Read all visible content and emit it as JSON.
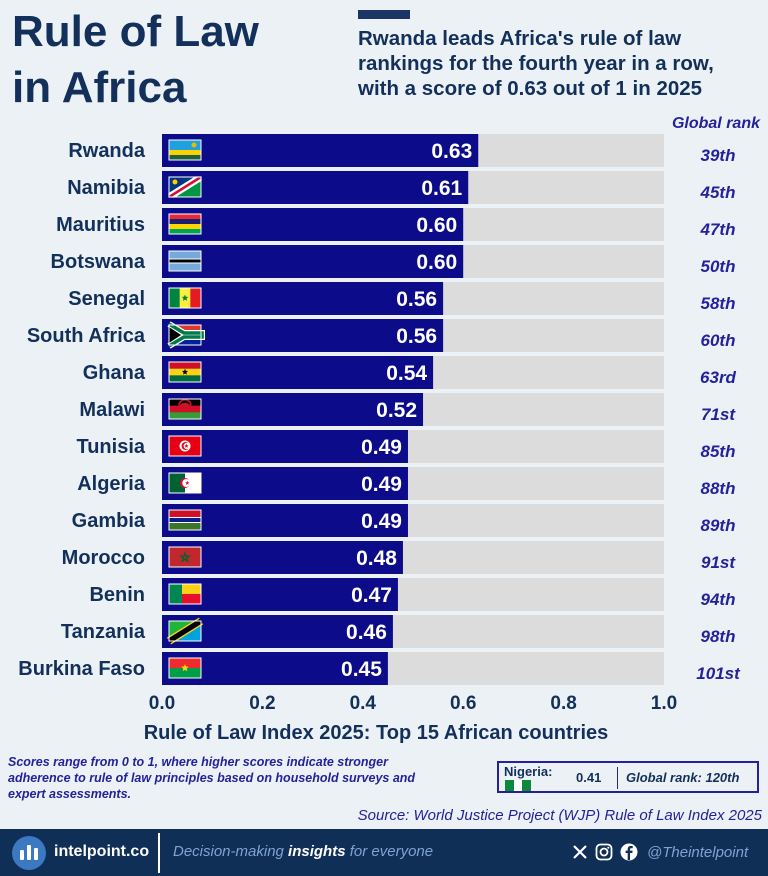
{
  "header": {
    "title_line1": "Rule of Law",
    "title_line2": "in Africa",
    "subtitle": "Rwanda leads Africa's rule of law rankings for the fourth year in a row, with a score of 0.63 out of 1 in 2025",
    "global_rank_label": "Global rank"
  },
  "chart_data": {
    "type": "bar",
    "orientation": "horizontal",
    "title": "Rule of Law Index 2025: Top 15 African countries",
    "xlabel": "Rule of Law Index 2025: Top 15 African countries",
    "ylabel": "",
    "xlim": [
      0,
      1
    ],
    "xticks": [
      "0.0",
      "0.2",
      "0.4",
      "0.6",
      "0.8",
      "1.0"
    ],
    "categories": [
      "Rwanda",
      "Namibia",
      "Mauritius",
      "Botswana",
      "Senegal",
      "South Africa",
      "Ghana",
      "Malawi",
      "Tunisia",
      "Algeria",
      "Gambia",
      "Morocco",
      "Benin",
      "Tanzania",
      "Burkina Faso"
    ],
    "values": [
      0.63,
      0.61,
      0.6,
      0.6,
      0.56,
      0.56,
      0.54,
      0.52,
      0.49,
      0.49,
      0.49,
      0.48,
      0.47,
      0.46,
      0.45
    ],
    "value_labels": [
      "0.63",
      "0.61",
      "0.60",
      "0.60",
      "0.56",
      "0.56",
      "0.54",
      "0.52",
      "0.49",
      "0.49",
      "0.49",
      "0.48",
      "0.47",
      "0.46",
      "0.45"
    ],
    "global_ranks": [
      "39th",
      "45th",
      "47th",
      "50th",
      "58th",
      "60th",
      "63rd",
      "71st",
      "85th",
      "88th",
      "89th",
      "91st",
      "94th",
      "98th",
      "101st"
    ],
    "flags": [
      "rwanda-flag",
      "namibia-flag",
      "mauritius-flag",
      "botswana-flag",
      "senegal-flag",
      "south-africa-flag",
      "ghana-flag",
      "malawi-flag",
      "tunisia-flag",
      "algeria-flag",
      "gambia-flag",
      "morocco-flag",
      "benin-flag",
      "tanzania-flag",
      "burkina-faso-flag"
    ],
    "colors": {
      "bar": "#0c0c8a",
      "track": "#dcdcdc",
      "rank_text": "#24229b",
      "label_text": "#12305a"
    }
  },
  "footnote": "Scores range from 0 to 1, where higher scores indicate stronger adherence to rule of law principles based on household surveys and expert assessments.",
  "nigeria": {
    "label": "Nigeria:",
    "score": "0.41",
    "rank": "Global rank: 120th",
    "flag": "nigeria-flag"
  },
  "source": "Source: World Justice Project (WJP) Rule of Law Index 2025",
  "footer": {
    "brand": "intelpoint.co",
    "tagline_pre": "Decision-making ",
    "tagline_bold": "insights",
    "tagline_post": " for everyone",
    "handle": "@Theintelpoint",
    "social_icons": [
      "x-icon",
      "instagram-icon",
      "facebook-icon"
    ]
  }
}
